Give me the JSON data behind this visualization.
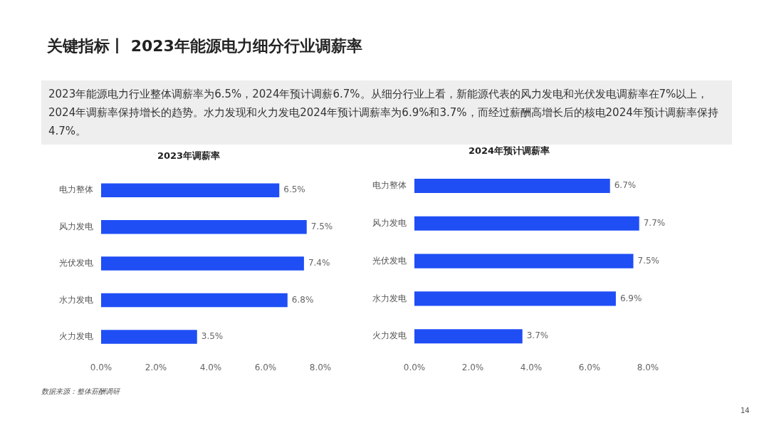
{
  "chart_data": [
    {
      "type": "other",
      "title": "关键指标丨 2023年能源电力细分行业调薪率",
      "subtitle": "2023年能源电力行业整体调薪率为6.5%，2024年预计调薪6.7%。从细分行业上看，新能源代表的风力发电和光伏发电调薪率在7%以上，2024年调薪率保持增长的趋势。水力发现和火力发电2024年预计调薪率为6.9%和3.7%，而经过薪酬高增长后的核电2024年预计调薪率保持4.7%。",
      "annotations": [
        "数据来源：整体薪酬调研",
        "14"
      ]
    },
    {
      "type": "bar",
      "orientation": "horizontal",
      "title": "2023年调薪率",
      "categories": [
        "电力整体",
        "风力发电",
        "光伏发电",
        "水力发电",
        "火力发电"
      ],
      "values": [
        6.5,
        7.5,
        7.4,
        6.8,
        3.5
      ],
      "value_labels": [
        "6.5%",
        "7.5%",
        "7.4%",
        "6.8%",
        "3.5%"
      ],
      "color": "#1f4ef5",
      "xlim": [
        0,
        8
      ],
      "xticks": [
        {
          "value": 0,
          "label": "0.0%"
        },
        {
          "value": 2,
          "label": "2.0%"
        },
        {
          "value": 4,
          "label": "4.0%"
        },
        {
          "value": 6,
          "label": "6.0%"
        },
        {
          "value": 8,
          "label": "8.0%"
        }
      ]
    },
    {
      "type": "bar",
      "orientation": "horizontal",
      "title": "2024年预计调薪率",
      "categories": [
        "电力整体",
        "风力发电",
        "光伏发电",
        "水力发电",
        "火力发电"
      ],
      "values": [
        6.7,
        7.7,
        7.5,
        6.9,
        3.7
      ],
      "value_labels": [
        "6.7%",
        "7.7%",
        "7.5%",
        "6.9%",
        "3.7%"
      ],
      "color": "#1f4ef5",
      "xlim": [
        0,
        8
      ],
      "xticks": [
        {
          "value": 0,
          "label": "0.0%"
        },
        {
          "value": 2,
          "label": "2.0%"
        },
        {
          "value": 4,
          "label": "4.0%"
        },
        {
          "value": 6,
          "label": "6.0%"
        },
        {
          "value": 8,
          "label": "8.0%"
        }
      ]
    }
  ]
}
